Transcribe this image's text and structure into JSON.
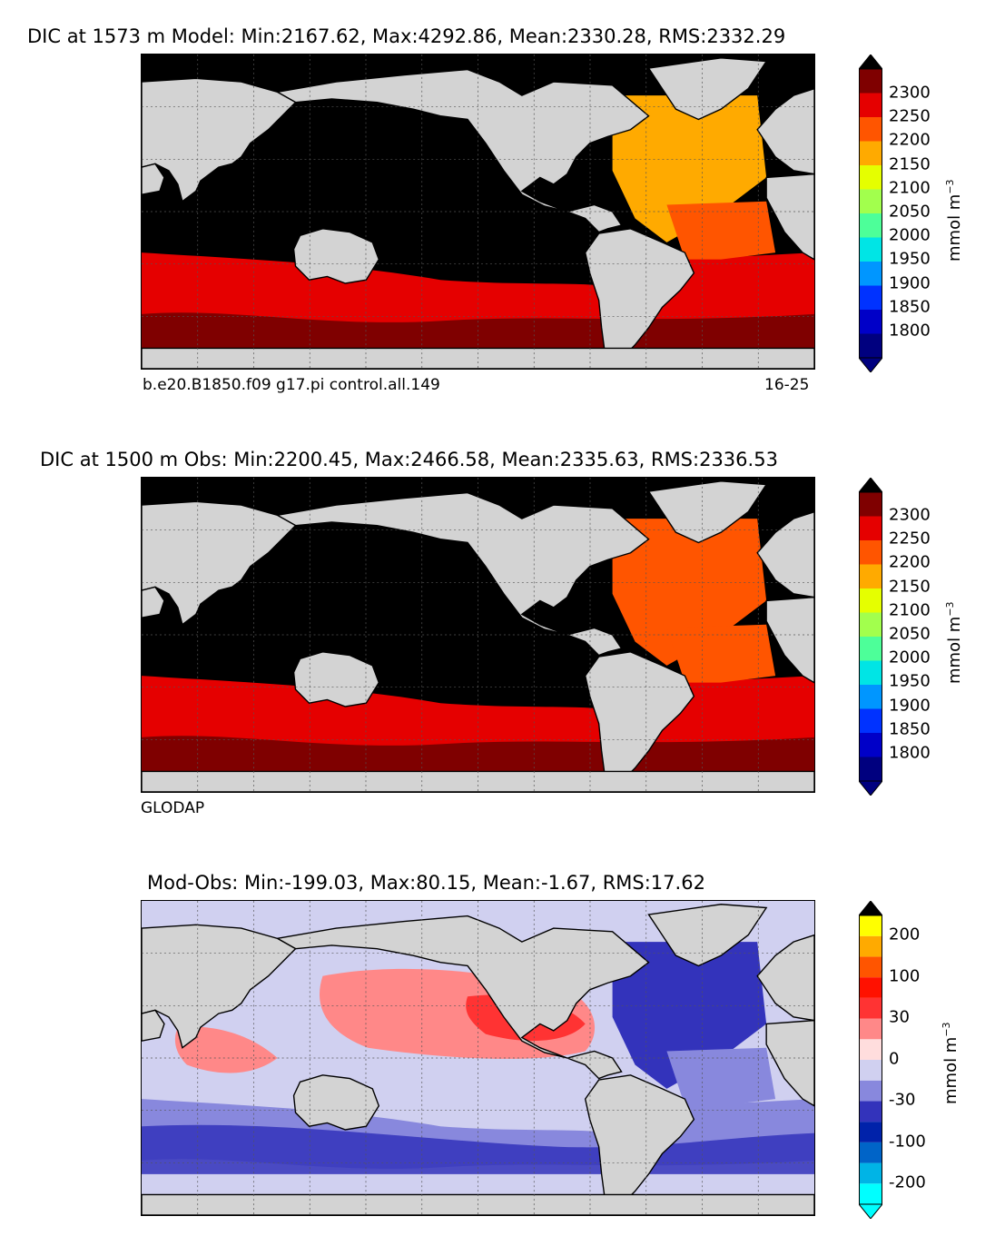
{
  "panels": [
    {
      "id": "model",
      "title": "DIC at 1573 m Model: Min:2167.62, Max:4292.86, Mean:2330.28, RMS:2332.29",
      "subtitle_left": "b.e20.B1850.f09 g17.pi control.all.149",
      "subtitle_right": "16-25",
      "colorbar": {
        "ticks": [
          "2300",
          "2250",
          "2200",
          "2150",
          "2100",
          "2050",
          "2000",
          "1950",
          "1900",
          "1850",
          "1800"
        ],
        "colors": [
          "#00007f",
          "#0000c8",
          "#0032ff",
          "#0096ff",
          "#00e5e5",
          "#4dff99",
          "#a2ff4d",
          "#e5ff00",
          "#ffaa00",
          "#ff5500",
          "#e50000",
          "#7f0000"
        ],
        "extend_low": "#00007f",
        "extend_high": "#000000",
        "unit": "mmol m",
        "unit_exp": "−3"
      },
      "map": {
        "ocean_fill": "#000000",
        "north_atlantic": "#ffaa00",
        "atlantic_mid": "#ff5500",
        "south_band": "#e50000",
        "deep_south": "#7f0000"
      }
    },
    {
      "id": "obs",
      "title": "DIC at 1500 m Obs: Min:2200.45, Max:2466.58, Mean:2335.63, RMS:2336.53",
      "subtitle_left": "GLODAP",
      "subtitle_right": "",
      "colorbar": {
        "ticks": [
          "2300",
          "2250",
          "2200",
          "2150",
          "2100",
          "2050",
          "2000",
          "1950",
          "1900",
          "1850",
          "1800"
        ],
        "colors": [
          "#00007f",
          "#0000c8",
          "#0032ff",
          "#0096ff",
          "#00e5e5",
          "#4dff99",
          "#a2ff4d",
          "#e5ff00",
          "#ffaa00",
          "#ff5500",
          "#e50000",
          "#7f0000"
        ],
        "extend_low": "#00007f",
        "extend_high": "#000000",
        "unit": "mmol m",
        "unit_exp": "−3"
      },
      "map": {
        "ocean_fill": "#000000",
        "north_atlantic": "#ff5500",
        "atlantic_mid": "#ff5500",
        "south_band": "#e50000",
        "deep_south": "#7f0000"
      }
    },
    {
      "id": "diff",
      "title": "Mod-Obs: Min:-199.03, Max:80.15, Mean:-1.67, RMS:17.62",
      "subtitle_left": "",
      "subtitle_right": "",
      "colorbar": {
        "ticks": [
          "200",
          "100",
          "30",
          "0",
          "-30",
          "-100",
          "-200"
        ],
        "colors": [
          "#00ffff",
          "#00b4e6",
          "#0064c8",
          "#0022aa",
          "#3333bb",
          "#8888dd",
          "#d0d0f0",
          "#ffdddd",
          "#ff8888",
          "#ff3333",
          "#ff1100",
          "#ff5500",
          "#ffaa00",
          "#ffff00"
        ],
        "extend_low": "#00ffff",
        "extend_high": "#000000",
        "unit": "mmol m",
        "unit_exp": "−3"
      },
      "map": {
        "ocean_fill": "#d0d0f0",
        "north_atlantic": "#3333bb",
        "atlantic_mid": "#8888dd",
        "south_band": "#8888dd",
        "deep_south": "#d0d0f0",
        "pacific_pos": "#ff8888",
        "pacific_hot": "#ff3333",
        "indian_pos": "#ff8888"
      }
    }
  ]
}
